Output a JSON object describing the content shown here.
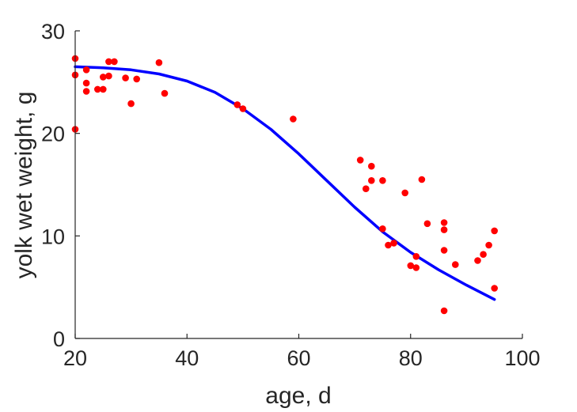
{
  "chart_data": {
    "type": "scatter",
    "title": "",
    "xlabel": "age, d",
    "ylabel": "yolk wet weight, g",
    "xlim": [
      20,
      100
    ],
    "ylim": [
      0,
      30
    ],
    "xticks": [
      20,
      40,
      60,
      80,
      100
    ],
    "yticks": [
      0,
      10,
      20,
      30
    ],
    "grid": false,
    "colors": {
      "points": "#ff0000",
      "fit": "#0000ff",
      "axis": "#262626"
    },
    "series": [
      {
        "kind": "points",
        "x": [
          20,
          20,
          20,
          22,
          22,
          22,
          24,
          25,
          25,
          26,
          26,
          27,
          29,
          30,
          31,
          35,
          36,
          49,
          50,
          59,
          71,
          72,
          73,
          73,
          75,
          75,
          76,
          77,
          79,
          80,
          81,
          81,
          82,
          83,
          86,
          86,
          86,
          86,
          88,
          92,
          93,
          94,
          95,
          95
        ],
        "y": [
          27.3,
          25.7,
          20.4,
          26.2,
          24.9,
          24.1,
          24.3,
          24.3,
          25.5,
          25.6,
          27.0,
          27.0,
          25.4,
          22.9,
          25.3,
          26.9,
          23.9,
          22.8,
          22.4,
          21.4,
          17.4,
          14.6,
          16.8,
          15.4,
          15.4,
          10.7,
          9.1,
          9.3,
          14.2,
          7.1,
          6.9,
          8.0,
          15.5,
          11.2,
          11.3,
          10.6,
          8.6,
          2.7,
          7.2,
          7.6,
          8.2,
          9.1,
          10.5,
          4.9
        ]
      },
      {
        "kind": "fit-line",
        "x": [
          20,
          25,
          30,
          35,
          40,
          45,
          50,
          55,
          60,
          65,
          70,
          75,
          80,
          85,
          90,
          95
        ],
        "y": [
          26.5,
          26.4,
          26.2,
          25.8,
          25.1,
          24.0,
          22.4,
          20.4,
          18.0,
          15.4,
          12.8,
          10.4,
          8.4,
          6.7,
          5.2,
          3.8
        ]
      }
    ]
  }
}
